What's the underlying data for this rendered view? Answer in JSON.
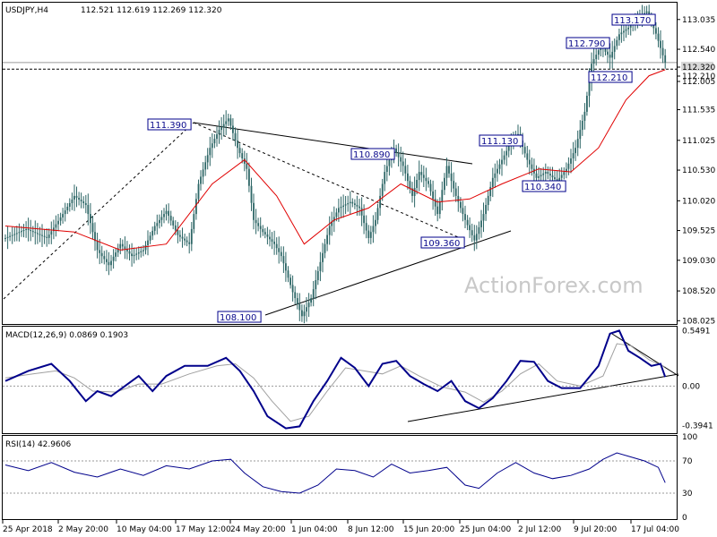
{
  "header": {
    "symbol": "USDJPY,H4",
    "ohlc": "112.521 112.619 112.269 112.320"
  },
  "watermark": "ActionForex.com",
  "colors": {
    "candle": "#2d6666",
    "ma": "#e00000",
    "macd": "#00008b",
    "signal": "#a0a0a0",
    "annotation": "#00008b"
  },
  "chart_data": [
    {
      "type": "candlestick",
      "title": "USDJPY,H4",
      "ylim": [
        108.0,
        113.3
      ],
      "y_ticks": [
        "113.035",
        "112.540",
        "112.320",
        "112.210",
        "112.005",
        "111.535",
        "111.025",
        "110.530",
        "110.020",
        "109.525",
        "109.030",
        "108.520",
        "108.025"
      ],
      "current_price": 112.32,
      "reference_line": 112.21,
      "price_path": [
        [
          0,
          109.4
        ],
        [
          9,
          109.55
        ],
        [
          18,
          109.4
        ],
        [
          25,
          109.8
        ],
        [
          30,
          110.1
        ],
        [
          35,
          109.95
        ],
        [
          40,
          109.2
        ],
        [
          45,
          108.95
        ],
        [
          50,
          109.3
        ],
        [
          55,
          109.1
        ],
        [
          60,
          109.2
        ],
        [
          65,
          109.6
        ],
        [
          70,
          109.85
        ],
        [
          75,
          109.45
        ],
        [
          80,
          109.3
        ],
        [
          84,
          110.3
        ],
        [
          89,
          110.9
        ],
        [
          93,
          111.2
        ],
        [
          97,
          111.39
        ],
        [
          101,
          110.9
        ],
        [
          105,
          110.55
        ],
        [
          108,
          109.7
        ],
        [
          112,
          109.5
        ],
        [
          117,
          109.3
        ],
        [
          120,
          109.1
        ],
        [
          125,
          108.5
        ],
        [
          129,
          108.1
        ],
        [
          133,
          108.4
        ],
        [
          137,
          109.0
        ],
        [
          141,
          109.6
        ],
        [
          145,
          109.9
        ],
        [
          150,
          110.0
        ],
        [
          154,
          109.9
        ],
        [
          158,
          109.4
        ],
        [
          161,
          109.7
        ],
        [
          165,
          110.5
        ],
        [
          169,
          110.89
        ],
        [
          173,
          110.6
        ],
        [
          177,
          110.1
        ],
        [
          180,
          110.5
        ],
        [
          184,
          110.3
        ],
        [
          188,
          109.8
        ],
        [
          192,
          110.6
        ],
        [
          196,
          110.1
        ],
        [
          200,
          109.7
        ],
        [
          204,
          109.36
        ],
        [
          208,
          109.8
        ],
        [
          212,
          110.4
        ],
        [
          216,
          110.7
        ],
        [
          220,
          111.0
        ],
        [
          223,
          111.13
        ],
        [
          227,
          110.7
        ],
        [
          231,
          110.4
        ],
        [
          235,
          110.5
        ],
        [
          240,
          110.35
        ],
        [
          244,
          110.55
        ],
        [
          248,
          110.9
        ],
        [
          252,
          111.5
        ],
        [
          255,
          112.3
        ],
        [
          259,
          112.6
        ],
        [
          263,
          112.4
        ],
        [
          267,
          112.79
        ],
        [
          271,
          112.9
        ],
        [
          275,
          113.05
        ],
        [
          279,
          113.17
        ],
        [
          283,
          112.8
        ],
        [
          287,
          112.32
        ]
      ],
      "ma_path": [
        [
          0,
          109.6
        ],
        [
          30,
          109.5
        ],
        [
          50,
          109.2
        ],
        [
          70,
          109.3
        ],
        [
          90,
          110.3
        ],
        [
          104,
          110.7
        ],
        [
          118,
          110.1
        ],
        [
          130,
          109.3
        ],
        [
          143,
          109.7
        ],
        [
          158,
          109.9
        ],
        [
          172,
          110.3
        ],
        [
          188,
          110.0
        ],
        [
          202,
          110.05
        ],
        [
          216,
          110.3
        ],
        [
          232,
          110.55
        ],
        [
          246,
          110.5
        ],
        [
          258,
          110.9
        ],
        [
          270,
          111.7
        ],
        [
          280,
          112.1
        ],
        [
          287,
          112.2
        ]
      ],
      "annotations": [
        {
          "text": "111.390",
          "value": 111.39
        },
        {
          "text": "108.100",
          "value": 108.1
        },
        {
          "text": "110.890",
          "value": 110.89
        },
        {
          "text": "109.360",
          "value": 109.36
        },
        {
          "text": "111.130",
          "value": 111.13
        },
        {
          "text": "110.340",
          "value": 110.34
        },
        {
          "text": "112.210",
          "value": 112.21
        },
        {
          "text": "112.790",
          "value": 112.79
        },
        {
          "text": "113.170",
          "value": 113.17
        }
      ]
    },
    {
      "type": "line",
      "title": "MACD(12,26,9) 0.0869 0.1903",
      "ylim": [
        -0.45,
        0.58
      ],
      "y_ticks": [
        "0.5491",
        "0.00",
        "-0.3941"
      ],
      "series": [
        {
          "values": [
            [
              0,
              0.05
            ],
            [
              10,
              0.15
            ],
            [
              20,
              0.22
            ],
            [
              28,
              0.05
            ],
            [
              35,
              -0.15
            ],
            [
              40,
              -0.05
            ],
            [
              46,
              -0.1
            ],
            [
              52,
              0.0
            ],
            [
              58,
              0.1
            ],
            [
              64,
              -0.05
            ],
            [
              70,
              0.1
            ],
            [
              78,
              0.2
            ],
            [
              88,
              0.2
            ],
            [
              96,
              0.28
            ],
            [
              102,
              0.15
            ],
            [
              108,
              -0.05
            ],
            [
              114,
              -0.3
            ],
            [
              122,
              -0.42
            ],
            [
              128,
              -0.4
            ],
            [
              134,
              -0.15
            ],
            [
              140,
              0.05
            ],
            [
              146,
              0.28
            ],
            [
              152,
              0.18
            ],
            [
              158,
              0.0
            ],
            [
              164,
              0.22
            ],
            [
              170,
              0.25
            ],
            [
              176,
              0.1
            ],
            [
              182,
              0.02
            ],
            [
              188,
              -0.05
            ],
            [
              194,
              0.05
            ],
            [
              200,
              -0.15
            ],
            [
              206,
              -0.22
            ],
            [
              212,
              -0.12
            ],
            [
              218,
              0.05
            ],
            [
              224,
              0.25
            ],
            [
              230,
              0.24
            ],
            [
              236,
              0.05
            ],
            [
              242,
              -0.02
            ],
            [
              250,
              -0.02
            ],
            [
              258,
              0.2
            ],
            [
              263,
              0.52
            ],
            [
              267,
              0.55
            ],
            [
              271,
              0.35
            ],
            [
              276,
              0.28
            ],
            [
              281,
              0.2
            ],
            [
              285,
              0.22
            ],
            [
              287,
              0.09
            ]
          ]
        },
        {
          "values": [
            [
              0,
              0.08
            ],
            [
              12,
              0.12
            ],
            [
              22,
              0.15
            ],
            [
              30,
              0.08
            ],
            [
              38,
              -0.05
            ],
            [
              48,
              -0.06
            ],
            [
              58,
              0.02
            ],
            [
              68,
              0.02
            ],
            [
              80,
              0.12
            ],
            [
              92,
              0.2
            ],
            [
              100,
              0.22
            ],
            [
              108,
              0.08
            ],
            [
              116,
              -0.15
            ],
            [
              124,
              -0.35
            ],
            [
              132,
              -0.3
            ],
            [
              140,
              -0.05
            ],
            [
              148,
              0.18
            ],
            [
              156,
              0.15
            ],
            [
              164,
              0.12
            ],
            [
              172,
              0.2
            ],
            [
              180,
              0.1
            ],
            [
              190,
              -0.01
            ],
            [
              200,
              -0.06
            ],
            [
              208,
              -0.16
            ],
            [
              216,
              -0.05
            ],
            [
              224,
              0.12
            ],
            [
              232,
              0.22
            ],
            [
              240,
              0.05
            ],
            [
              250,
              0.0
            ],
            [
              260,
              0.1
            ],
            [
              266,
              0.42
            ],
            [
              272,
              0.4
            ],
            [
              280,
              0.26
            ],
            [
              287,
              0.19
            ]
          ]
        }
      ]
    },
    {
      "type": "line",
      "title": "RSI(14) 42.9606",
      "ylim": [
        0,
        100
      ],
      "y_ticks": [
        "100",
        "70",
        "30",
        "0"
      ],
      "series": [
        {
          "values": [
            [
              0,
              65
            ],
            [
              10,
              58
            ],
            [
              20,
              68
            ],
            [
              30,
              56
            ],
            [
              40,
              50
            ],
            [
              50,
              60
            ],
            [
              60,
              52
            ],
            [
              70,
              64
            ],
            [
              80,
              60
            ],
            [
              90,
              70
            ],
            [
              98,
              72
            ],
            [
              104,
              55
            ],
            [
              112,
              38
            ],
            [
              120,
              32
            ],
            [
              128,
              30
            ],
            [
              136,
              40
            ],
            [
              144,
              60
            ],
            [
              152,
              58
            ],
            [
              160,
              50
            ],
            [
              168,
              66
            ],
            [
              176,
              55
            ],
            [
              184,
              58
            ],
            [
              192,
              62
            ],
            [
              200,
              40
            ],
            [
              206,
              36
            ],
            [
              214,
              55
            ],
            [
              222,
              68
            ],
            [
              230,
              55
            ],
            [
              238,
              48
            ],
            [
              246,
              52
            ],
            [
              254,
              60
            ],
            [
              260,
              72
            ],
            [
              266,
              80
            ],
            [
              272,
              75
            ],
            [
              278,
              70
            ],
            [
              284,
              62
            ],
            [
              287,
              43
            ]
          ]
        }
      ]
    }
  ],
  "x_axis": [
    "25 Apr 2018",
    "2 May 20:00",
    "10 May 04:00",
    "17 May 12:00",
    "24 May 20:00",
    "1 Jun 04:00",
    "8 Jun 12:00",
    "15 Jun 20:00",
    "25 Jun 04:00",
    "2 Jul 12:00",
    "9 Jul 20:00",
    "17 Jul 04:00"
  ]
}
